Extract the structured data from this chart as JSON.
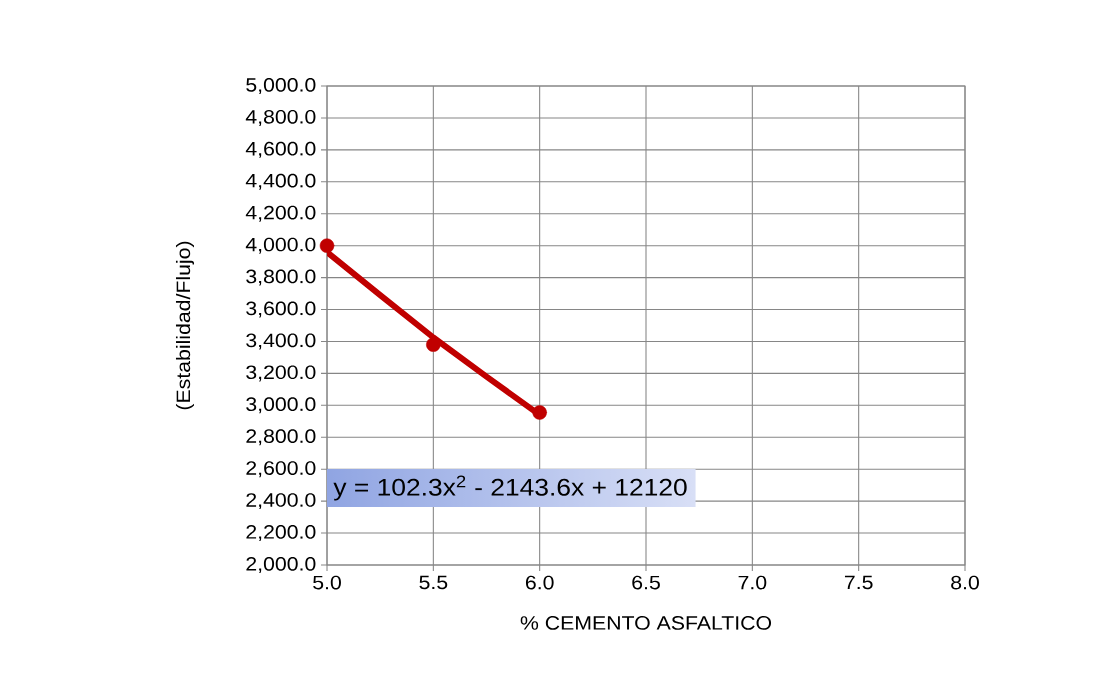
{
  "chart_data": {
    "type": "scatter",
    "xlabel": "% CEMENTO ASFALTICO",
    "ylabel": "(Estabilidad/Flujo)",
    "xlim": [
      5,
      8
    ],
    "xticks": [
      {
        "value": 5,
        "label": "5.0"
      },
      {
        "value": 5.5,
        "label": "5.5"
      },
      {
        "value": 6,
        "label": "6.0"
      },
      {
        "value": 6.5,
        "label": "6.5"
      },
      {
        "value": 7,
        "label": "7.0"
      },
      {
        "value": 7.5,
        "label": "7.5"
      },
      {
        "value": 8,
        "label": "8.0"
      }
    ],
    "ylim": [
      2000,
      5000
    ],
    "yticks": [
      {
        "value": 2000,
        "label": "2,000.0"
      },
      {
        "value": 2200,
        "label": "2,200.0"
      },
      {
        "value": 2400,
        "label": "2,400.0"
      },
      {
        "value": 2600,
        "label": "2,600.0"
      },
      {
        "value": 2800,
        "label": "2,800.0"
      },
      {
        "value": 3000,
        "label": "3,000.0"
      },
      {
        "value": 3200,
        "label": "3,200.0"
      },
      {
        "value": 3400,
        "label": "3,400.0"
      },
      {
        "value": 3600,
        "label": "3,600.0"
      },
      {
        "value": 3800,
        "label": "3,800.0"
      },
      {
        "value": 4000,
        "label": "4,000.0"
      },
      {
        "value": 4200,
        "label": "4,200.0"
      },
      {
        "value": 4400,
        "label": "4,400.0"
      },
      {
        "value": 4600,
        "label": "4,600.0"
      },
      {
        "value": 4800,
        "label": "4,800.0"
      },
      {
        "value": 5000,
        "label": "5,000.0"
      }
    ],
    "grid": true,
    "marker": "circle",
    "series": [
      {
        "type": "line",
        "color": "#c00000",
        "marker": "none",
        "x": [
          5,
          5.25,
          5.5,
          5.75,
          6
        ],
        "values": [
          3960,
          3690,
          3425,
          3180,
          2940
        ]
      },
      {
        "color": "#c00000",
        "x": [
          5,
          5.5,
          6
        ],
        "values": [
          4000,
          3380,
          2955
        ]
      }
    ],
    "annotations": [
      "y = 102.3x$^{2}$ - 2143.6x + 12120"
    ]
  }
}
